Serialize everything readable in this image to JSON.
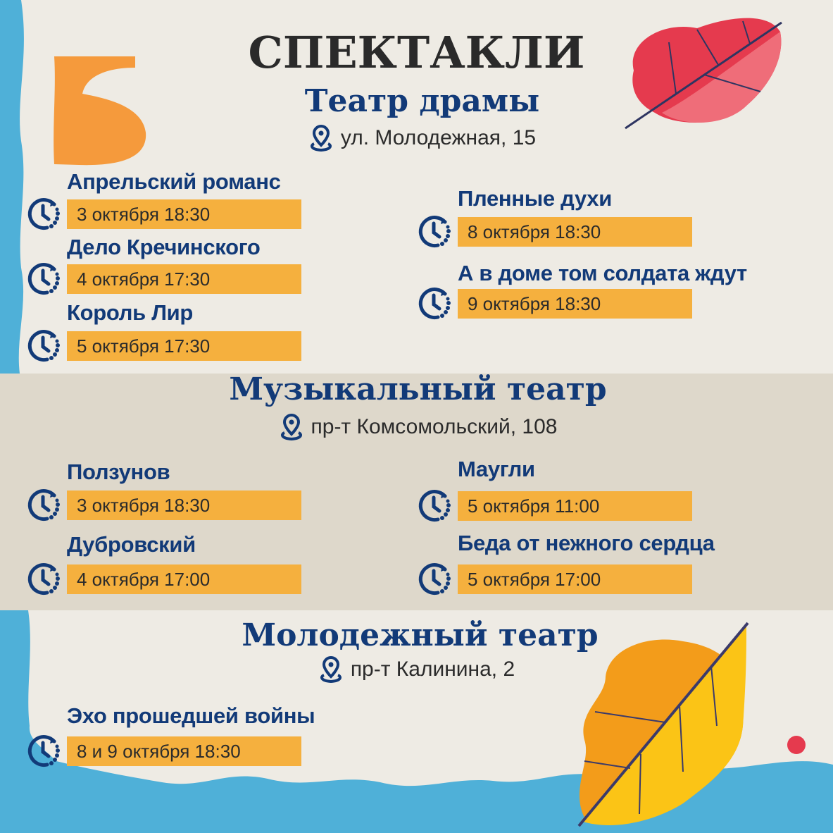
{
  "heading": "СПЕКТАКЛИ",
  "colors": {
    "background_blue": "#4fb0d8",
    "paper": "#eeebe4",
    "band": "#ded8cb",
    "navy": "#123a78",
    "date_bar": "#f5b03e",
    "leaf_red": "#e53a4e",
    "leaf_orange": "#f39c1a",
    "leaf_yellow": "#fbc416"
  },
  "theatres": [
    {
      "name": "Театр драмы",
      "address": "ул. Молодежная, 15",
      "icon": "location-pin-icon",
      "shows": [
        {
          "title": "Апрельский романс",
          "date": "3 октября 18:30"
        },
        {
          "title": "Дело Кречинского",
          "date": "4 октября 17:30"
        },
        {
          "title": "Король Лир",
          "date": "5 октября 17:30"
        },
        {
          "title": "Пленные духи",
          "date": "8 октября 18:30"
        },
        {
          "title": "А в доме том солдата ждут",
          "date": "9 октября 18:30"
        }
      ]
    },
    {
      "name": "Музыкальный театр",
      "address": "пр-т Комсомольский, 108",
      "icon": "location-pin-icon",
      "shows": [
        {
          "title": "Ползунов",
          "date": "3 октября 18:30"
        },
        {
          "title": "Дубровский",
          "date": "4 октября 17:00"
        },
        {
          "title": "Маугли",
          "date": "5 октября 11:00"
        },
        {
          "title": "Беда от нежного сердца",
          "date": "5 октября 17:00"
        }
      ]
    },
    {
      "name": "Молодежный театр",
      "address": "пр-т Калинина, 2",
      "icon": "location-pin-icon",
      "shows": [
        {
          "title": "Эхо прошедшей войны",
          "date": "8 и 9 октября 18:30"
        }
      ]
    }
  ]
}
